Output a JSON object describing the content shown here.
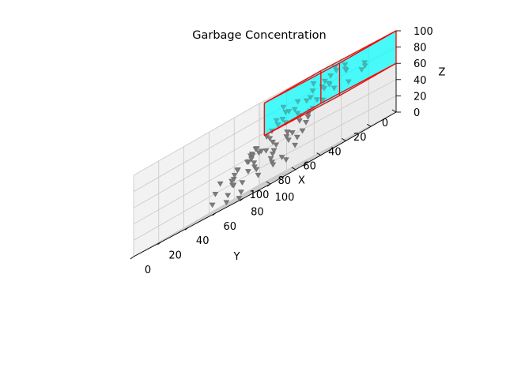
{
  "chart_data": {
    "type": "scatter3d",
    "title": "Garbage Concentration",
    "xlabel": "X",
    "ylabel": "Y",
    "zlabel": "Z",
    "xlim": [
      0,
      100
    ],
    "ylim": [
      0,
      100
    ],
    "zlim": [
      0,
      100
    ],
    "xticks": [
      "0",
      "20",
      "40",
      "60",
      "80",
      "100"
    ],
    "yticks": [
      "0",
      "20",
      "40",
      "60",
      "80",
      "100"
    ],
    "zticks": [
      "0",
      "20",
      "40",
      "60",
      "80",
      "100"
    ],
    "grid": true,
    "marker": "triangle-down",
    "marker_color": "#7a7a7a",
    "highlight_box": {
      "x": [
        0,
        45
      ],
      "y": [
        45,
        100
      ],
      "z": [
        60,
        100
      ],
      "fill": "#00ffff",
      "edge": "#ff0000"
    },
    "points": [
      [
        4,
        23,
        72
      ],
      [
        6,
        18,
        68
      ],
      [
        2,
        30,
        77
      ],
      [
        8,
        25,
        80
      ],
      [
        10,
        35,
        70
      ],
      [
        5,
        42,
        74
      ],
      [
        12,
        28,
        66
      ],
      [
        3,
        12,
        58
      ],
      [
        7,
        20,
        62
      ],
      [
        15,
        33,
        60
      ],
      [
        18,
        22,
        55
      ],
      [
        20,
        40,
        72
      ],
      [
        9,
        8,
        40
      ],
      [
        11,
        15,
        38
      ],
      [
        14,
        5,
        36
      ],
      [
        22,
        30,
        45
      ],
      [
        25,
        18,
        42
      ],
      [
        28,
        10,
        34
      ],
      [
        30,
        25,
        48
      ],
      [
        33,
        38,
        52
      ],
      [
        36,
        15,
        30
      ],
      [
        40,
        28,
        38
      ],
      [
        42,
        20,
        26
      ],
      [
        45,
        35,
        44
      ],
      [
        48,
        12,
        20
      ],
      [
        50,
        30,
        35
      ],
      [
        52,
        42,
        40
      ],
      [
        55,
        22,
        30
      ],
      [
        58,
        48,
        46
      ],
      [
        60,
        35,
        26
      ],
      [
        62,
        55,
        50
      ],
      [
        64,
        40,
        20
      ],
      [
        66,
        62,
        44
      ],
      [
        68,
        50,
        18
      ],
      [
        70,
        30,
        10
      ],
      [
        72,
        58,
        28
      ],
      [
        74,
        45,
        12
      ],
      [
        76,
        66,
        35
      ],
      [
        78,
        52,
        22
      ],
      [
        80,
        70,
        30
      ],
      [
        82,
        62,
        8
      ],
      [
        84,
        75,
        26
      ],
      [
        86,
        55,
        5
      ],
      [
        88,
        80,
        18
      ],
      [
        90,
        68,
        2
      ],
      [
        35,
        60,
        65
      ],
      [
        38,
        72,
        60
      ],
      [
        42,
        68,
        55
      ],
      [
        46,
        78,
        58
      ],
      [
        50,
        85,
        62
      ],
      [
        54,
        70,
        50
      ],
      [
        57,
        88,
        55
      ],
      [
        60,
        75,
        45
      ],
      [
        63,
        92,
        50
      ],
      [
        66,
        82,
        40
      ],
      [
        30,
        75,
        78
      ],
      [
        33,
        85,
        72
      ],
      [
        27,
        90,
        70
      ],
      [
        25,
        62,
        82
      ],
      [
        22,
        95,
        76
      ],
      [
        10,
        55,
        80
      ],
      [
        14,
        65,
        88
      ],
      [
        18,
        80,
        85
      ],
      [
        8,
        70,
        92
      ],
      [
        20,
        58,
        90
      ],
      [
        12,
        88,
        82
      ],
      [
        16,
        92,
        78
      ],
      [
        24,
        70,
        86
      ],
      [
        5,
        60,
        95
      ],
      [
        28,
        82,
        92
      ],
      [
        35,
        95,
        88
      ],
      [
        40,
        88,
        80
      ],
      [
        44,
        75,
        75
      ],
      [
        48,
        95,
        82
      ],
      [
        52,
        90,
        70
      ],
      [
        56,
        98,
        66
      ],
      [
        60,
        85,
        62
      ],
      [
        70,
        92,
        38
      ],
      [
        75,
        95,
        30
      ],
      [
        80,
        90,
        24
      ],
      [
        65,
        72,
        42
      ],
      [
        58,
        64,
        36
      ],
      [
        54,
        58,
        28
      ],
      [
        46,
        52,
        32
      ],
      [
        40,
        46,
        22
      ],
      [
        34,
        52,
        48
      ],
      [
        26,
        48,
        44
      ],
      [
        31,
        60,
        40
      ],
      [
        37,
        44,
        18
      ],
      [
        44,
        60,
        16
      ]
    ]
  }
}
